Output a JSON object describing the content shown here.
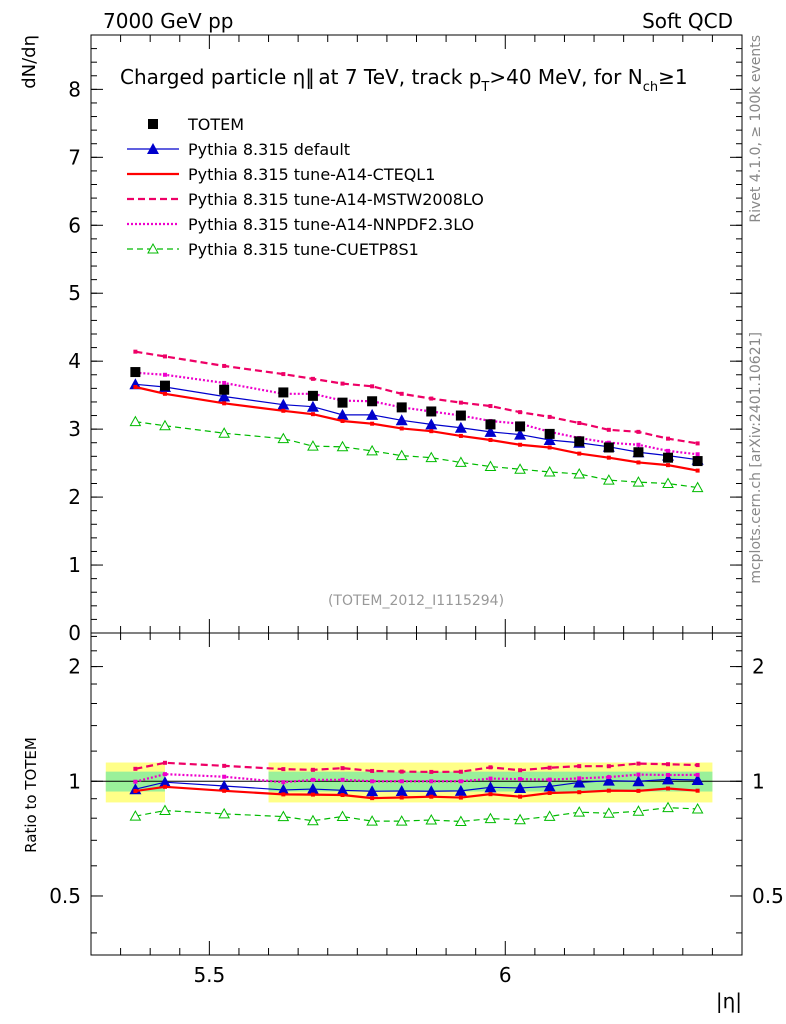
{
  "header": {
    "left": "7000 GeV pp",
    "right": "Soft QCD"
  },
  "side_labels": {
    "rivet": "Rivet 4.1.0, ≥ 100k events",
    "mcplots": "mcplots.cern.ch [arXiv:2401.10621]"
  },
  "colors": {
    "data": "#000000",
    "default": "#0000cc",
    "cteql1": "#ff0000",
    "mstw": "#ee0066",
    "nnpdf": "#ee00cc",
    "cuetp8s1": "#00bb00",
    "band_inner": "#9af09a",
    "band_outer": "#ffff88"
  },
  "chart_data": {
    "type": "line",
    "title": "Charged particle |η| at 7 TeV, track pT>40 MeV, for Nch≥1",
    "title_parts": {
      "a": "Charged particle ",
      "eta": "η",
      "b": "| at 7 TeV, track p",
      "sub1": "T",
      "c": ">40 MeV, for N",
      "sub2": "ch",
      "d": "≥1",
      "bar": "|"
    },
    "reference": "(TOTEM_2012_I1115294)",
    "xlabel": "|η|",
    "ylabel": "dN/dη",
    "ratio_ylabel": "Ratio to TOTEM",
    "xlim": [
      5.3,
      6.4
    ],
    "ylim": [
      0,
      8.8
    ],
    "ratio_ylim": [
      0.35,
      2.45
    ],
    "x_ticks": [
      5.5,
      6
    ],
    "x_tick_labels": [
      "5.5",
      "6"
    ],
    "y_ticks": [
      0,
      1,
      2,
      3,
      4,
      5,
      6,
      7,
      8
    ],
    "y_tick_labels": [
      "0",
      "1",
      "2",
      "3",
      "4",
      "5",
      "6",
      "7",
      "8"
    ],
    "ratio_ticks": [
      0.5,
      1,
      2
    ],
    "ratio_tick_labels": [
      "0.5",
      "1",
      "2"
    ],
    "x": [
      5.375,
      5.425,
      5.525,
      5.625,
      5.675,
      5.725,
      5.775,
      5.825,
      5.875,
      5.925,
      5.975,
      6.025,
      6.075,
      6.125,
      6.175,
      6.225,
      6.275,
      6.325
    ],
    "data": {
      "name": "TOTEM",
      "values": [
        3.84,
        3.64,
        3.58,
        3.54,
        3.49,
        3.39,
        3.41,
        3.32,
        3.26,
        3.2,
        3.07,
        3.04,
        2.93,
        2.82,
        2.73,
        2.66,
        2.58,
        2.53
      ],
      "band_segments": [
        [
          5.325,
          5.425
        ],
        [
          5.6,
          6.35
        ]
      ],
      "band_inner_halfwidth": 0.06,
      "band_outer_halfwidth": 0.12
    },
    "series": [
      {
        "name": "Pythia 8.315 default",
        "key": "default",
        "style": "solid",
        "width": 1.2,
        "marker": "triangle-filled",
        "values": [
          3.66,
          3.62,
          3.48,
          3.36,
          3.33,
          3.21,
          3.21,
          3.13,
          3.07,
          3.02,
          2.96,
          2.92,
          2.84,
          2.8,
          2.74,
          2.66,
          2.61,
          2.55
        ]
      },
      {
        "name": "Pythia 8.315 tune-A14-CTEQL1",
        "key": "cteql1",
        "style": "solid",
        "width": 2.2,
        "marker": "square-small",
        "values": [
          3.62,
          3.52,
          3.38,
          3.27,
          3.22,
          3.12,
          3.08,
          3.01,
          2.97,
          2.9,
          2.84,
          2.77,
          2.73,
          2.64,
          2.58,
          2.51,
          2.47,
          2.39
        ]
      },
      {
        "name": "Pythia 8.315 tune-A14-MSTW2008LO",
        "key": "mstw",
        "style": "dashed",
        "width": 2.2,
        "marker": "square-small",
        "values": [
          4.14,
          4.07,
          3.93,
          3.81,
          3.74,
          3.67,
          3.63,
          3.52,
          3.45,
          3.39,
          3.34,
          3.25,
          3.18,
          3.09,
          2.99,
          2.96,
          2.86,
          2.79
        ]
      },
      {
        "name": "Pythia 8.315 tune-A14-NNPDF2.3LO",
        "key": "nnpdf",
        "style": "dotted",
        "width": 2.2,
        "marker": "square-small",
        "values": [
          3.83,
          3.8,
          3.68,
          3.52,
          3.52,
          3.42,
          3.41,
          3.32,
          3.26,
          3.2,
          3.12,
          3.08,
          2.96,
          2.87,
          2.8,
          2.77,
          2.68,
          2.63
        ]
      },
      {
        "name": "Pythia 8.315 tune-CUETP8S1",
        "key": "cuetp8s1",
        "style": "dashed-thin",
        "width": 1.2,
        "marker": "triangle-open",
        "values": [
          3.11,
          3.05,
          2.94,
          2.86,
          2.75,
          2.74,
          2.68,
          2.61,
          2.58,
          2.51,
          2.45,
          2.41,
          2.37,
          2.34,
          2.25,
          2.22,
          2.2,
          2.14
        ]
      }
    ]
  }
}
